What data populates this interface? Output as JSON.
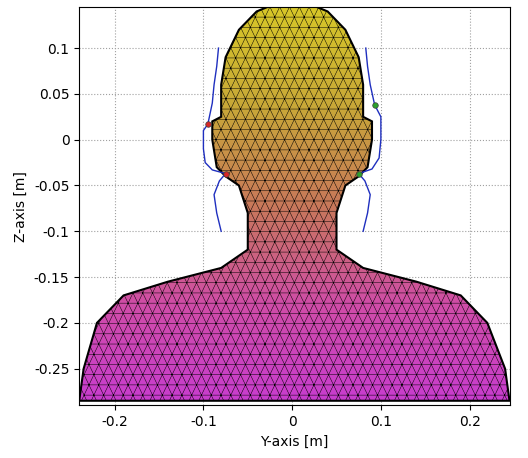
{
  "chart_data": {
    "type": "mesh",
    "x_label": "Y-axis [m]",
    "y_label": "Z-axis [m]",
    "xlim": [
      -0.24,
      0.245
    ],
    "ylim": [
      -0.29,
      0.145
    ],
    "xticks": [
      -0.2,
      -0.1,
      0,
      0.1,
      0.2
    ],
    "yticks": [
      -0.25,
      -0.2,
      -0.15,
      -0.1,
      -0.05,
      0,
      0.05,
      0.1
    ],
    "grid": true,
    "silhouette": {
      "x": [
        -0.24,
        -0.235,
        -0.22,
        -0.19,
        -0.14,
        -0.08,
        -0.05,
        -0.05,
        -0.06,
        -0.075,
        -0.085,
        -0.09,
        -0.09,
        -0.08,
        -0.08,
        -0.075,
        -0.06,
        -0.04,
        -0.02,
        0.02,
        0.04,
        0.06,
        0.075,
        0.08,
        0.08,
        0.09,
        0.09,
        0.085,
        0.075,
        0.06,
        0.05,
        0.05,
        0.08,
        0.14,
        0.19,
        0.22,
        0.24,
        0.245
      ],
      "values": [
        -0.285,
        -0.25,
        -0.2,
        -0.17,
        -0.155,
        -0.14,
        -0.12,
        -0.08,
        -0.05,
        -0.04,
        -0.03,
        0.0,
        0.02,
        0.025,
        0.06,
        0.09,
        0.12,
        0.14,
        0.148,
        0.148,
        0.14,
        0.12,
        0.09,
        0.06,
        0.025,
        0.02,
        0.0,
        -0.03,
        -0.04,
        -0.05,
        -0.08,
        -0.12,
        -0.14,
        -0.155,
        -0.17,
        -0.2,
        -0.25,
        -0.285
      ]
    },
    "series": [
      {
        "type": "line",
        "color": "#1f2fbf",
        "x": [
          -0.083,
          -0.085,
          -0.088,
          -0.09,
          -0.095,
          -0.1,
          -0.1,
          -0.098,
          -0.09,
          -0.075,
          -0.082,
          -0.088,
          -0.085,
          -0.08
        ],
        "values": [
          0.1,
          0.08,
          0.06,
          0.04,
          0.017,
          0.01,
          -0.01,
          -0.025,
          -0.033,
          -0.037,
          -0.045,
          -0.06,
          -0.08,
          -0.1
        ]
      },
      {
        "type": "line",
        "color": "#1f2fbf",
        "x": [
          0.083,
          0.085,
          0.088,
          0.093,
          0.1,
          0.1,
          0.098,
          0.09,
          0.075,
          0.082,
          0.088,
          0.085,
          0.08
        ],
        "values": [
          0.1,
          0.08,
          0.06,
          0.038,
          0.025,
          0.0,
          -0.02,
          -0.032,
          -0.037,
          -0.045,
          -0.06,
          -0.08,
          -0.1
        ]
      },
      {
        "type": "scatter",
        "color": "#d62728",
        "marker": "o",
        "x": [
          -0.095,
          -0.075
        ],
        "values": [
          0.017,
          -0.037
        ]
      },
      {
        "type": "scatter",
        "color": "#2ca02c",
        "marker": "o",
        "x": [
          0.093,
          0.075
        ],
        "values": [
          0.038,
          -0.037
        ]
      }
    ]
  }
}
